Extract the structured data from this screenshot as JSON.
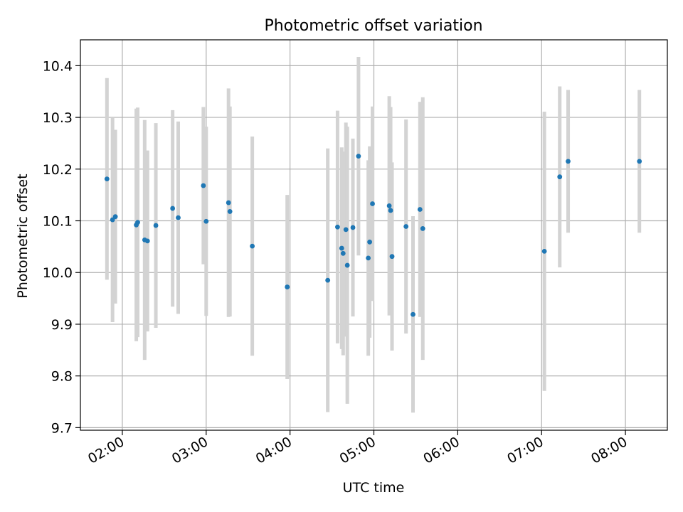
{
  "chart_data": {
    "type": "scatter",
    "title": "Photometric offset variation",
    "xlabel": "UTC time",
    "ylabel": "Photometric offset",
    "x_unit": "time of day (UTC)",
    "xlim": [
      "01:30",
      "08:30"
    ],
    "ylim": [
      9.695,
      10.45
    ],
    "x_ticks": [
      "02:00",
      "03:00",
      "04:00",
      "05:00",
      "06:00",
      "07:00",
      "08:00"
    ],
    "y_ticks": [
      "9.7",
      "9.8",
      "9.9",
      "10.0",
      "10.1",
      "10.2",
      "10.3",
      "10.4"
    ],
    "y_tick_values": [
      9.7,
      9.8,
      9.9,
      10.0,
      10.1,
      10.2,
      10.3,
      10.4
    ],
    "grid": true,
    "point_color": "#1f77b4",
    "errorbar_color": "#d3d3d3",
    "points": [
      {
        "x": "01:49",
        "y": 10.181,
        "err": 0.195
      },
      {
        "x": "01:53",
        "y": 10.102,
        "err": 0.198
      },
      {
        "x": "01:55",
        "y": 10.108,
        "err": 0.168
      },
      {
        "x": "02:10",
        "y": 10.092,
        "err": 0.225
      },
      {
        "x": "02:11",
        "y": 10.097,
        "err": 0.222
      },
      {
        "x": "02:16",
        "y": 10.063,
        "err": 0.232
      },
      {
        "x": "02:18",
        "y": 10.061,
        "err": 0.175
      },
      {
        "x": "02:24",
        "y": 10.091,
        "err": 0.198
      },
      {
        "x": "02:36",
        "y": 10.124,
        "err": 0.19
      },
      {
        "x": "02:40",
        "y": 10.106,
        "err": 0.186
      },
      {
        "x": "02:58",
        "y": 10.168,
        "err": 0.152
      },
      {
        "x": "03:00",
        "y": 10.099,
        "err": 0.183
      },
      {
        "x": "03:16",
        "y": 10.135,
        "err": 0.221
      },
      {
        "x": "03:17",
        "y": 10.118,
        "err": 0.203
      },
      {
        "x": "03:33",
        "y": 10.051,
        "err": 0.212
      },
      {
        "x": "03:58",
        "y": 9.972,
        "err": 0.178
      },
      {
        "x": "04:27",
        "y": 9.985,
        "err": 0.255
      },
      {
        "x": "04:34",
        "y": 10.088,
        "err": 0.225
      },
      {
        "x": "04:37",
        "y": 10.047,
        "err": 0.195
      },
      {
        "x": "04:38",
        "y": 10.037,
        "err": 0.197
      },
      {
        "x": "04:40",
        "y": 10.083,
        "err": 0.207
      },
      {
        "x": "04:41",
        "y": 10.014,
        "err": 0.268
      },
      {
        "x": "04:45",
        "y": 10.087,
        "err": 0.172
      },
      {
        "x": "04:49",
        "y": 10.225,
        "err": 0.192
      },
      {
        "x": "04:56",
        "y": 10.028,
        "err": 0.189
      },
      {
        "x": "04:57",
        "y": 10.059,
        "err": 0.185
      },
      {
        "x": "04:59",
        "y": 10.133,
        "err": 0.188
      },
      {
        "x": "05:11",
        "y": 10.129,
        "err": 0.212
      },
      {
        "x": "05:12",
        "y": 10.12,
        "err": 0.2
      },
      {
        "x": "05:13",
        "y": 10.031,
        "err": 0.182
      },
      {
        "x": "05:23",
        "y": 10.089,
        "err": 0.207
      },
      {
        "x": "05:28",
        "y": 9.919,
        "err": 0.19
      },
      {
        "x": "05:33",
        "y": 10.122,
        "err": 0.208
      },
      {
        "x": "05:35",
        "y": 10.085,
        "err": 0.254
      },
      {
        "x": "07:02",
        "y": 10.041,
        "err": 0.27
      },
      {
        "x": "07:13",
        "y": 10.185,
        "err": 0.175
      },
      {
        "x": "07:19",
        "y": 10.215,
        "err": 0.138
      },
      {
        "x": "08:10",
        "y": 10.215,
        "err": 0.138
      }
    ]
  }
}
